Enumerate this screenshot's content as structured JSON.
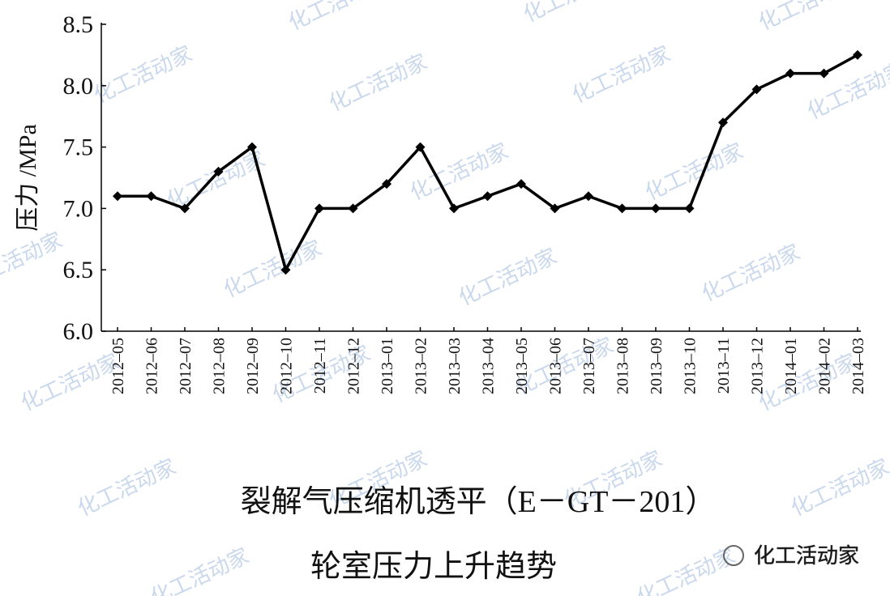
{
  "chart_data": {
    "type": "line",
    "title": [
      "裂解气压缩机透平（E－GT－201）",
      "轮室压力上升趋势"
    ],
    "y_label": "压力 /MPa",
    "watermark": "化工活动家",
    "categories": [
      "2012–05",
      "2012–06",
      "2012–07",
      "2012–08",
      "2012–09",
      "2012–10",
      "2012–11",
      "2012–12",
      "2013–01",
      "2013–02",
      "2013–03",
      "2013–04",
      "2013–05",
      "2013–06",
      "2013–07",
      "2013–08",
      "2013–09",
      "2013–10",
      "2013–11",
      "2013–12",
      "2014–01",
      "2014–02",
      "2014–03"
    ],
    "series": [
      {
        "color": "#000000",
        "values": [
          7.1,
          7.1,
          7.0,
          7.3,
          7.5,
          6.5,
          7.0,
          7.0,
          7.2,
          7.5,
          7.0,
          7.1,
          7.2,
          7.0,
          7.1,
          7.0,
          7.0,
          7.0,
          7.7,
          7.97,
          8.1,
          8.1,
          8.25
        ]
      }
    ],
    "ylim": [
      6.0,
      8.5
    ],
    "yticks": [
      {
        "value": 6.0,
        "label": "6.0"
      },
      6.5,
      {
        "value": 7.0,
        "label": "7.0"
      },
      7.5,
      {
        "value": 8.0,
        "label": "8.0"
      },
      8.5
    ]
  }
}
